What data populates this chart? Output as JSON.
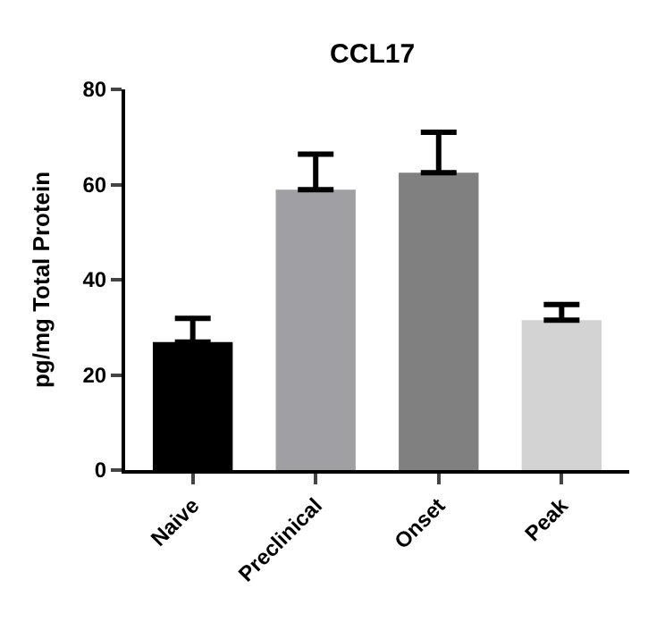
{
  "chart_data": {
    "type": "bar",
    "title": "CCL17",
    "ylabel": "pg/mg Total Protein",
    "categories": [
      "Naive",
      "Preclinical",
      "Onset",
      "Peak"
    ],
    "values": [
      26.9,
      58.9,
      62.5,
      31.5
    ],
    "colors": [
      "#000000",
      "#a0a0a4",
      "#808080",
      "#d3d3d3"
    ],
    "errors": [
      [
        26.9,
        31.9
      ],
      [
        58.9,
        66.4
      ],
      [
        62.5,
        71
      ],
      [
        31.5,
        34.8
      ]
    ],
    "ylim": [
      0,
      80
    ],
    "yticks": [
      0,
      20,
      40,
      60,
      80
    ]
  }
}
